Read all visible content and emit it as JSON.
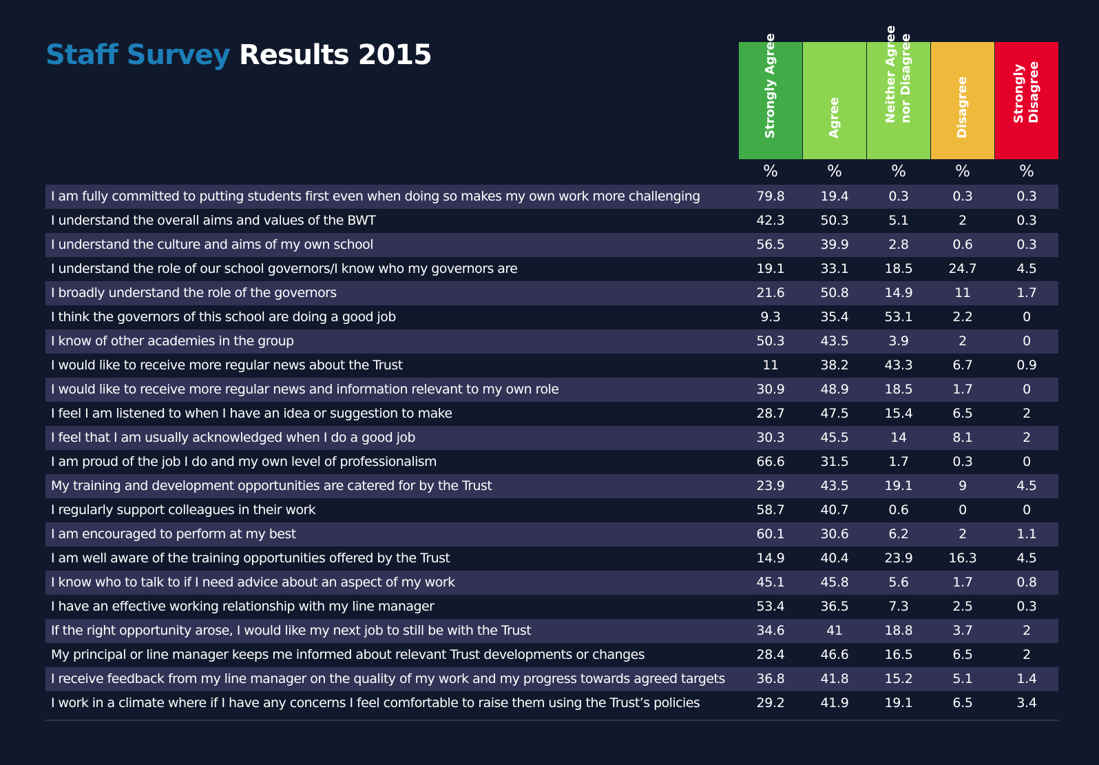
{
  "title": {
    "part1": "Staff Survey",
    "part2": "Results 2015"
  },
  "chart_data": {
    "type": "table",
    "title": "Staff Survey Results 2015",
    "columns": [
      {
        "label": "Strongly Agree",
        "color": "#41ac47"
      },
      {
        "label": "Agree",
        "color": "#8dd551"
      },
      {
        "label": "Neither Agree\nnor Disagree",
        "color": "#8dd551"
      },
      {
        "label": "Disagree",
        "color": "#efba3c"
      },
      {
        "label": "Strongly\nDisagree",
        "color": "#e5002a"
      }
    ],
    "unit_labels": [
      "%",
      "%",
      "%",
      "%",
      "%"
    ],
    "rows": [
      {
        "question": "I am fully committed to putting students first even when doing so makes my own work more challenging",
        "values": [
          "79.8",
          "19.4",
          "0.3",
          "0.3",
          "0.3"
        ]
      },
      {
        "question": "I understand the overall aims and values of the BWT",
        "values": [
          "42.3",
          "50.3",
          "5.1",
          "2",
          "0.3"
        ]
      },
      {
        "question": "I understand the culture and aims of my own school",
        "values": [
          "56.5",
          "39.9",
          "2.8",
          "0.6",
          "0.3"
        ]
      },
      {
        "question": "I understand the role of our school governors/I know who my governors are",
        "values": [
          "19.1",
          "33.1",
          "18.5",
          "24.7",
          "4.5"
        ]
      },
      {
        "question": "I broadly understand the role of the governors",
        "values": [
          "21.6",
          "50.8",
          "14.9",
          "11",
          "1.7"
        ]
      },
      {
        "question": "I think the governors of this school are doing a good job",
        "values": [
          "9.3",
          "35.4",
          "53.1",
          "2.2",
          "0"
        ]
      },
      {
        "question": "I know of other academies in the group",
        "values": [
          "50.3",
          "43.5",
          "3.9",
          "2",
          "0"
        ]
      },
      {
        "question": "I would like to receive more regular news about the Trust",
        "values": [
          "11",
          "38.2",
          "43.3",
          "6.7",
          "0.9"
        ]
      },
      {
        "question": "I would like to receive more regular news and information relevant to my own role",
        "values": [
          "30.9",
          "48.9",
          "18.5",
          "1.7",
          "0"
        ]
      },
      {
        "question": "I feel I am listened to when I have an idea or suggestion to make",
        "values": [
          "28.7",
          "47.5",
          "15.4",
          "6.5",
          "2"
        ]
      },
      {
        "question": "I feel that I am usually acknowledged when I do a good job",
        "values": [
          "30.3",
          "45.5",
          "14",
          "8.1",
          "2"
        ]
      },
      {
        "question": "I am proud of the job I do and my own level of professionalism",
        "values": [
          "66.6",
          "31.5",
          "1.7",
          "0.3",
          "0"
        ]
      },
      {
        "question": "My training and development opportunities are catered for by the Trust",
        "values": [
          "23.9",
          "43.5",
          "19.1",
          "9",
          "4.5"
        ]
      },
      {
        "question": "I regularly support colleagues in their work",
        "values": [
          "58.7",
          "40.7",
          "0.6",
          "0",
          "0"
        ]
      },
      {
        "question": "I am encouraged to perform at my best",
        "values": [
          "60.1",
          "30.6",
          "6.2",
          "2",
          "1.1"
        ]
      },
      {
        "question": "I am well aware of the training opportunities offered by the Trust",
        "values": [
          "14.9",
          "40.4",
          "23.9",
          "16.3",
          "4.5"
        ]
      },
      {
        "question": "I know who to talk to if I need advice about an aspect of my work",
        "values": [
          "45.1",
          "45.8",
          "5.6",
          "1.7",
          "0.8"
        ]
      },
      {
        "question": "I have an effective working relationship with my line manager",
        "values": [
          "53.4",
          "36.5",
          "7.3",
          "2.5",
          "0.3"
        ]
      },
      {
        "question": "If the right opportunity arose, I would like my next job to still be with the Trust",
        "values": [
          "34.6",
          "41",
          "18.8",
          "3.7",
          "2"
        ]
      },
      {
        "question": "My principal or line manager keeps me informed about relevant Trust developments or changes",
        "values": [
          "28.4",
          "46.6",
          "16.5",
          "6.5",
          "2"
        ]
      },
      {
        "question": "I receive feedback from my line manager on the quality of my work and my progress towards agreed targets",
        "values": [
          "36.8",
          "41.8",
          "15.2",
          "5.1",
          "1.4"
        ]
      },
      {
        "question": "I work in a climate where if I have any concerns I feel comfortable to raise them using the Trust’s policies",
        "values": [
          "29.2",
          "41.9",
          "19.1",
          "6.5",
          "3.4"
        ]
      }
    ]
  }
}
